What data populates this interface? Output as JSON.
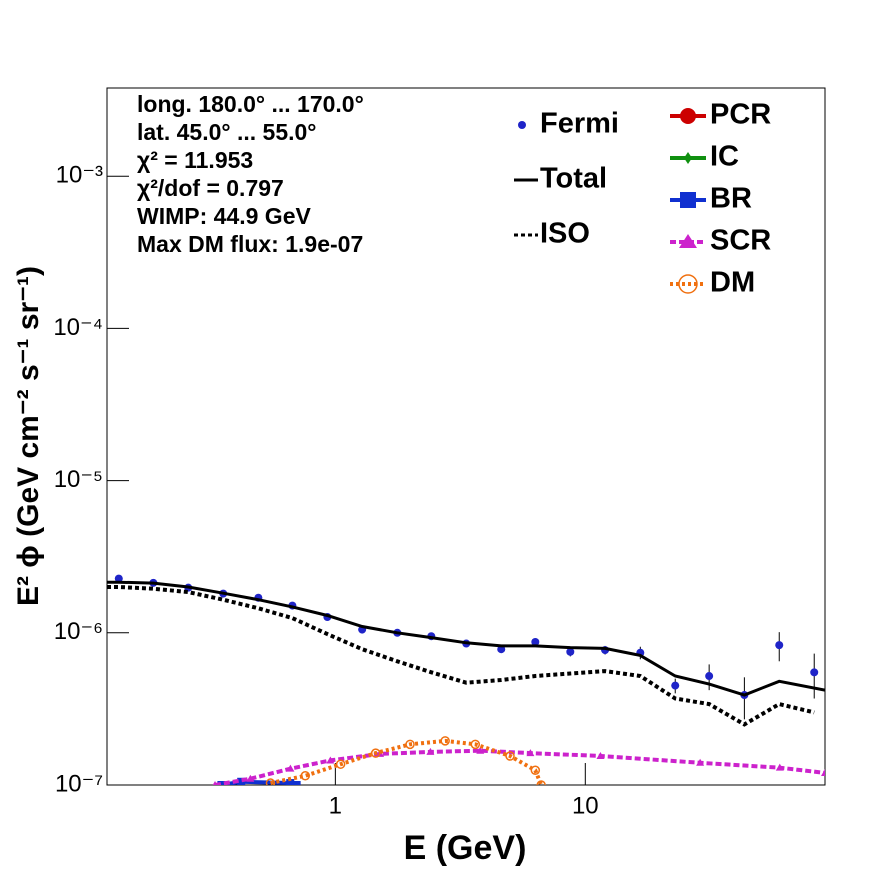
{
  "chart_data": {
    "type": "line",
    "xlabel": "E (GeV)",
    "ylabel": "E² ϕ (GeV cm⁻² s⁻¹ sr⁻¹)",
    "log_x": true,
    "log_y": true,
    "xlim": [
      0.122,
      91
    ],
    "ylim": [
      1e-07,
      0.0038
    ],
    "xticks": [
      1,
      10
    ],
    "yticks": [
      {
        "value": 1e-07,
        "label": "10⁻⁷"
      },
      {
        "value": 1e-06,
        "label": "10⁻⁶"
      },
      {
        "value": 1e-05,
        "label": "10⁻⁵"
      },
      {
        "value": 0.0001,
        "label": "10⁻⁴"
      },
      {
        "value": 0.001,
        "label": "10⁻³"
      }
    ],
    "annotations": [
      "long. 180.0° ... 170.0°",
      "lat. 45.0° ... 55.0°",
      "χ² = 11.953",
      "χ²/dof = 0.797",
      "WIMP: 44.9 GeV",
      "Max DM flux: 1.9e-07"
    ],
    "series": [
      {
        "name": "Fermi",
        "color": "#1f24c8",
        "style": "points",
        "x": [
          0.136,
          0.187,
          0.258,
          0.356,
          0.492,
          0.673,
          0.929,
          1.28,
          1.77,
          2.42,
          3.34,
          4.61,
          6.31,
          8.71,
          12.0,
          16.6,
          22.9,
          31.3,
          43.3,
          59.7,
          82.4
        ],
        "values": [
          2.27e-06,
          2.13e-06,
          1.98e-06,
          1.81e-06,
          1.7e-06,
          1.51e-06,
          1.27e-06,
          1.05e-06,
          1e-06,
          9.5e-07,
          8.5e-07,
          7.8e-07,
          8.7e-07,
          7.5e-07,
          7.7e-07,
          7.4e-07,
          4.5e-07,
          5.2e-07,
          3.9e-07,
          8.3e-07,
          5.5e-07
        ],
        "errors": [
          2e-08,
          2e-08,
          2e-08,
          2e-08,
          2e-08,
          2e-08,
          2e-08,
          2e-08,
          2e-08,
          2e-08,
          2e-08,
          3e-08,
          5e-08,
          5e-08,
          5e-08,
          7e-08,
          5e-08,
          1e-07,
          1.2e-07,
          1.8e-07,
          1.8e-07
        ]
      },
      {
        "name": "Total",
        "color": "#000000",
        "style": "solid",
        "x": [
          0.122,
          0.136,
          0.187,
          0.258,
          0.356,
          0.492,
          0.673,
          0.929,
          1.28,
          1.77,
          2.42,
          3.34,
          4.61,
          6.31,
          8.71,
          12.0,
          16.6,
          22.9,
          31.3,
          43.3,
          59.7,
          91
        ],
        "values": [
          2.15e-06,
          2.15e-06,
          2.12e-06,
          2e-06,
          1.82e-06,
          1.65e-06,
          1.48e-06,
          1.3e-06,
          1.1e-06,
          1e-06,
          9.3e-07,
          8.6e-07,
          8.2e-07,
          8.2e-07,
          8e-07,
          7.9e-07,
          7.1e-07,
          5.2e-07,
          4.6e-07,
          3.9e-07,
          4.8e-07,
          4.2e-07
        ]
      },
      {
        "name": "ISO",
        "color": "#000000",
        "style": "dotted",
        "x": [
          0.122,
          0.136,
          0.187,
          0.258,
          0.356,
          0.492,
          0.673,
          0.929,
          1.28,
          1.77,
          2.42,
          3.34,
          4.61,
          6.31,
          8.71,
          12.0,
          16.6,
          22.9,
          31.3,
          43.3,
          59.7,
          82.4
        ],
        "values": [
          2e-06,
          2e-06,
          1.95e-06,
          1.85e-06,
          1.65e-06,
          1.45e-06,
          1.25e-06,
          9.8e-07,
          7.8e-07,
          6.5e-07,
          5.5e-07,
          4.7e-07,
          4.9e-07,
          5.2e-07,
          5.4e-07,
          5.6e-07,
          5.2e-07,
          3.7e-07,
          3.4e-07,
          2.5e-07,
          3.4e-07,
          3e-07
        ]
      },
      {
        "name": "PCR",
        "color": "#cc0000",
        "style": "circle",
        "x": [],
        "values": []
      },
      {
        "name": "IC",
        "color": "#109010",
        "style": "diamond",
        "x": [],
        "values": []
      },
      {
        "name": "BR",
        "color": "#1030d0",
        "style": "square",
        "x": [
          0.35,
          0.42,
          0.66,
          0.7
        ],
        "values": [
          1e-07,
          1.05e-07,
          1.03e-07,
          1e-07
        ]
      },
      {
        "name": "SCR",
        "color": "#cc22cc",
        "style": "triangle",
        "x": [
          0.33,
          0.457,
          0.661,
          0.955,
          1.51,
          2.4,
          3.8,
          6.03,
          11.5,
          28.8,
          60,
          91
        ],
        "values": [
          1e-07,
          1.1e-07,
          1.28e-07,
          1.45e-07,
          1.6e-07,
          1.65e-07,
          1.68e-07,
          1.62e-07,
          1.55e-07,
          1.4e-07,
          1.3e-07,
          1.2e-07
        ]
      },
      {
        "name": "DM",
        "color": "#f07010",
        "style": "open-circle",
        "x": [
          0.55,
          0.758,
          1.05,
          1.45,
          1.99,
          2.75,
          3.63,
          5.0,
          6.31,
          6.66
        ],
        "values": [
          1.03e-07,
          1.15e-07,
          1.37e-07,
          1.62e-07,
          1.85e-07,
          1.95e-07,
          1.85e-07,
          1.55e-07,
          1.25e-07,
          1e-07
        ]
      }
    ]
  }
}
